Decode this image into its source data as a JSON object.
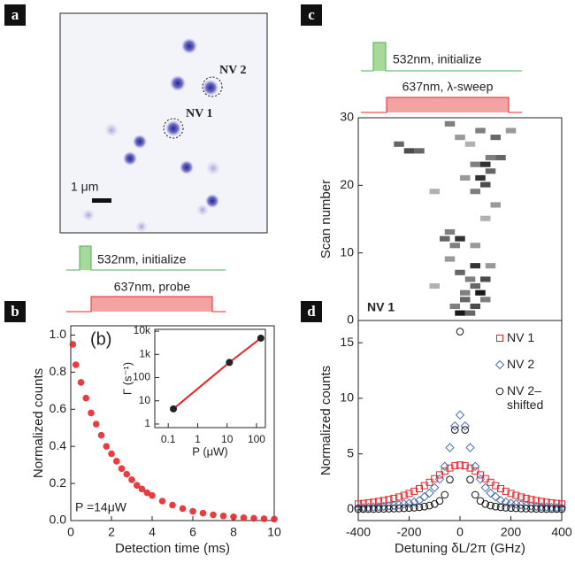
{
  "panel_labels": [
    "a",
    "b",
    "c",
    "d"
  ],
  "image": {
    "labels": [
      "NV 2",
      "NV 1",
      "1 μm"
    ]
  },
  "pulses": [
    {
      "green": "532nm, initialize",
      "red": "637nm, probe"
    },
    {
      "green": "532nm, initialize",
      "red": "637nm, λ-sweep"
    }
  ],
  "chart_data": [
    {
      "type": "scatter",
      "color": "#e8262a",
      "x": [
        0.1,
        0.25,
        0.5,
        0.75,
        1,
        1.25,
        1.5,
        1.75,
        2,
        2.25,
        2.5,
        2.75,
        3,
        3.25,
        3.5,
        3.75,
        4,
        4.5,
        5,
        5.5,
        6,
        6.5,
        7,
        7.5,
        8,
        8.5,
        9,
        9.5,
        10
      ],
      "values": [
        0.95,
        0.84,
        0.745,
        0.66,
        0.58,
        0.52,
        0.46,
        0.4,
        0.36,
        0.32,
        0.28,
        0.25,
        0.22,
        0.19,
        0.17,
        0.15,
        0.135,
        0.105,
        0.083,
        0.065,
        0.05,
        0.04,
        0.031,
        0.025,
        0.02,
        0.015,
        0.012,
        0.01,
        0.008
      ],
      "xlim": [
        0,
        10
      ],
      "ylim": [
        0,
        1.05
      ],
      "xticks": [
        0,
        2,
        4,
        6,
        8,
        10
      ],
      "yticks": [
        {
          "value": 0,
          "label": "0.0"
        },
        0.2,
        0.4,
        0.6,
        0.8,
        {
          "value": 1,
          "label": "1.0"
        }
      ],
      "xlabel": "Detection time (ms)",
      "ylabel": "Normalized counts",
      "annotations": [
        "(b)",
        "P =14μW"
      ]
    },
    {
      "type": "line",
      "log_x": true,
      "log_y": true,
      "color": "#e8262a",
      "marker_color": "#222222",
      "x": [
        0.15,
        12,
        140
      ],
      "values": [
        4.5,
        450,
        5000
      ],
      "xlim": [
        0.035,
        200
      ],
      "ylim": [
        0.7,
        12000
      ],
      "xticks": [
        0.1,
        1,
        10,
        100
      ],
      "yticks": [
        1,
        10,
        100,
        {
          "value": 1000,
          "label": "1k"
        },
        {
          "value": 10000,
          "label": "10k"
        }
      ],
      "xlabel": "P (μW)",
      "ylabel": "Γ (s⁻¹)"
    },
    {
      "type": "heatmap",
      "color": "#000000",
      "x": [
        0,
        40,
        -20,
        60,
        20,
        100,
        80,
        20,
        60,
        -100,
        100,
        40,
        0,
        60,
        120,
        -40,
        -20,
        60,
        0,
        -60,
        -40,
        100,
        140,
        60,
        -100,
        100,
        80,
        20,
        120,
        100,
        60,
        160,
        120,
        -200,
        -160,
        -240,
        40,
        0,
        140,
        80,
        200,
        -40
      ],
      "y": [
        1,
        1,
        2,
        2,
        3,
        3,
        4,
        4,
        5,
        5,
        6,
        6,
        7,
        8,
        8,
        9,
        11,
        11,
        12,
        12,
        13,
        15,
        17,
        19,
        19,
        20,
        21,
        21,
        22,
        23,
        23,
        24,
        24,
        25,
        25,
        26,
        26,
        27,
        27,
        28,
        28,
        29
      ],
      "values": [
        0.9,
        0.6,
        0.5,
        0.7,
        0.6,
        0.5,
        0.9,
        0.5,
        0.6,
        0.3,
        0.7,
        0.5,
        0.6,
        0.8,
        0.4,
        0.4,
        0.5,
        0.4,
        0.8,
        0.6,
        0.5,
        0.3,
        0.4,
        0.5,
        0.3,
        0.7,
        0.8,
        0.4,
        0.6,
        0.8,
        0.5,
        0.6,
        0.5,
        0.7,
        0.6,
        0.6,
        0.3,
        0.4,
        0.6,
        0.5,
        0.4,
        0.5
      ],
      "xlim": [
        -400,
        400
      ],
      "ylim": [
        0,
        30
      ],
      "yticks": [
        0,
        10,
        20,
        30
      ],
      "ylabel": "Scan number",
      "annotations": [
        "NV 1"
      ]
    },
    {
      "type": "scatter",
      "legend": "upper right",
      "x": [
        -400,
        -380,
        -360,
        -340,
        -320,
        -300,
        -280,
        -260,
        -240,
        -220,
        -200,
        -180,
        -160,
        -140,
        -120,
        -100,
        -80,
        -60,
        -40,
        -20,
        0,
        20,
        40,
        60,
        80,
        100,
        120,
        140,
        160,
        180,
        200,
        220,
        240,
        260,
        280,
        300,
        320,
        340,
        360,
        380,
        400
      ],
      "series": [
        {
          "name": "NV 1",
          "color": "#e8262a",
          "marker": "square",
          "values": [
            0.49,
            0.54,
            0.59,
            0.65,
            0.72,
            0.8,
            0.89,
            1.0,
            1.12,
            1.27,
            1.44,
            1.64,
            1.87,
            2.14,
            2.44,
            2.77,
            3.11,
            3.45,
            3.73,
            3.93,
            4,
            3.93,
            3.73,
            3.45,
            3.11,
            2.77,
            2.44,
            2.14,
            1.87,
            1.64,
            1.44,
            1.27,
            1.12,
            1.0,
            0.89,
            0.8,
            0.72,
            0.65,
            0.59,
            0.54,
            0.49
          ]
        },
        {
          "name": "NV 2",
          "color": "#4a6fb5",
          "marker": "diamond",
          "values": [
            0.16,
            0.17,
            0.19,
            0.22,
            0.24,
            0.28,
            0.32,
            0.35,
            0.42,
            0.5,
            0.56,
            0.67,
            0.81,
            1.14,
            1.47,
            1.97,
            2.73,
            3.88,
            5.56,
            7.51,
            8.5,
            7.51,
            5.56,
            3.88,
            2.73,
            1.97,
            1.47,
            1.14,
            0.81,
            0.67,
            0.56,
            0.5,
            0.42,
            0.35,
            0.32,
            0.28,
            0.24,
            0.22,
            0.19,
            0.17,
            0.16
          ]
        },
        {
          "name": "NV 2–shifted",
          "color": "#111111",
          "marker": "circle",
          "values": [
            0.03,
            0.04,
            0.04,
            0.04,
            0.05,
            0.06,
            0.07,
            0.08,
            0.09,
            0.11,
            0.13,
            0.16,
            0.2,
            0.26,
            0.35,
            0.49,
            0.77,
            1.32,
            2.69,
            7.16,
            16,
            7.16,
            2.69,
            1.32,
            0.77,
            0.49,
            0.35,
            0.26,
            0.2,
            0.16,
            0.13,
            0.11,
            0.09,
            0.08,
            0.07,
            0.06,
            0.05,
            0.04,
            0.04,
            0.04,
            0.03
          ]
        }
      ],
      "xlim": [
        -400,
        400
      ],
      "ylim": [
        -1,
        17
      ],
      "xticks": [
        -400,
        -200,
        0,
        200,
        400
      ],
      "yticks": [
        0,
        5,
        10,
        15
      ],
      "xlabel": "Detuning δL/2π (GHz)",
      "ylabel": "Normalized counts"
    }
  ]
}
